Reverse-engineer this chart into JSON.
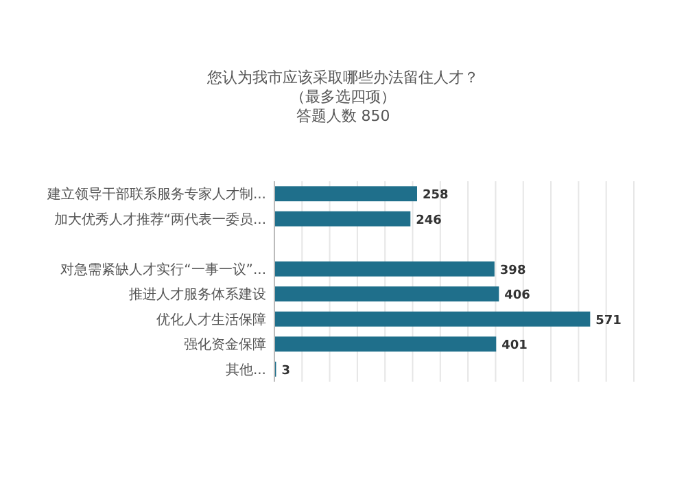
{
  "chart_data": {
    "type": "bar",
    "orientation": "horizontal",
    "title": "您认为我市应该采取哪些办法留住人才？（最多选四项）",
    "subtitle": "答题人数 850",
    "categories": [
      "建立领导干部联系服务专家人才制...",
      "加大优秀人才推荐“两代表一委员...",
      null,
      "对急需紧缺人才实行“一事一议”...",
      "推进人才服务体系建设",
      "优化人才生活保障",
      "强化资金保障",
      "其他..."
    ],
    "values": [
      258,
      246,
      null,
      398,
      406,
      571,
      401,
      3
    ],
    "value_labels": [
      "258",
      "246",
      null,
      "398",
      "406",
      "571",
      "401",
      "3"
    ],
    "color": "#1f6f8b",
    "xlim": [
      0,
      650
    ],
    "xticks": [
      {
        "value": 0,
        "label": null
      },
      {
        "value": 50,
        "label": null
      },
      {
        "value": 100,
        "label": null
      },
      {
        "value": 150,
        "label": null
      },
      {
        "value": 200,
        "label": null
      },
      {
        "value": 250,
        "label": null
      },
      {
        "value": 300,
        "label": null
      },
      {
        "value": 350,
        "label": null
      },
      {
        "value": 400,
        "label": null
      },
      {
        "value": 450,
        "label": null
      },
      {
        "value": 500,
        "label": null
      },
      {
        "value": 550,
        "label": null
      },
      {
        "value": 600,
        "label": null
      },
      {
        "value": 650,
        "label": null
      }
    ],
    "grid": "x",
    "tick_labels": "y"
  }
}
